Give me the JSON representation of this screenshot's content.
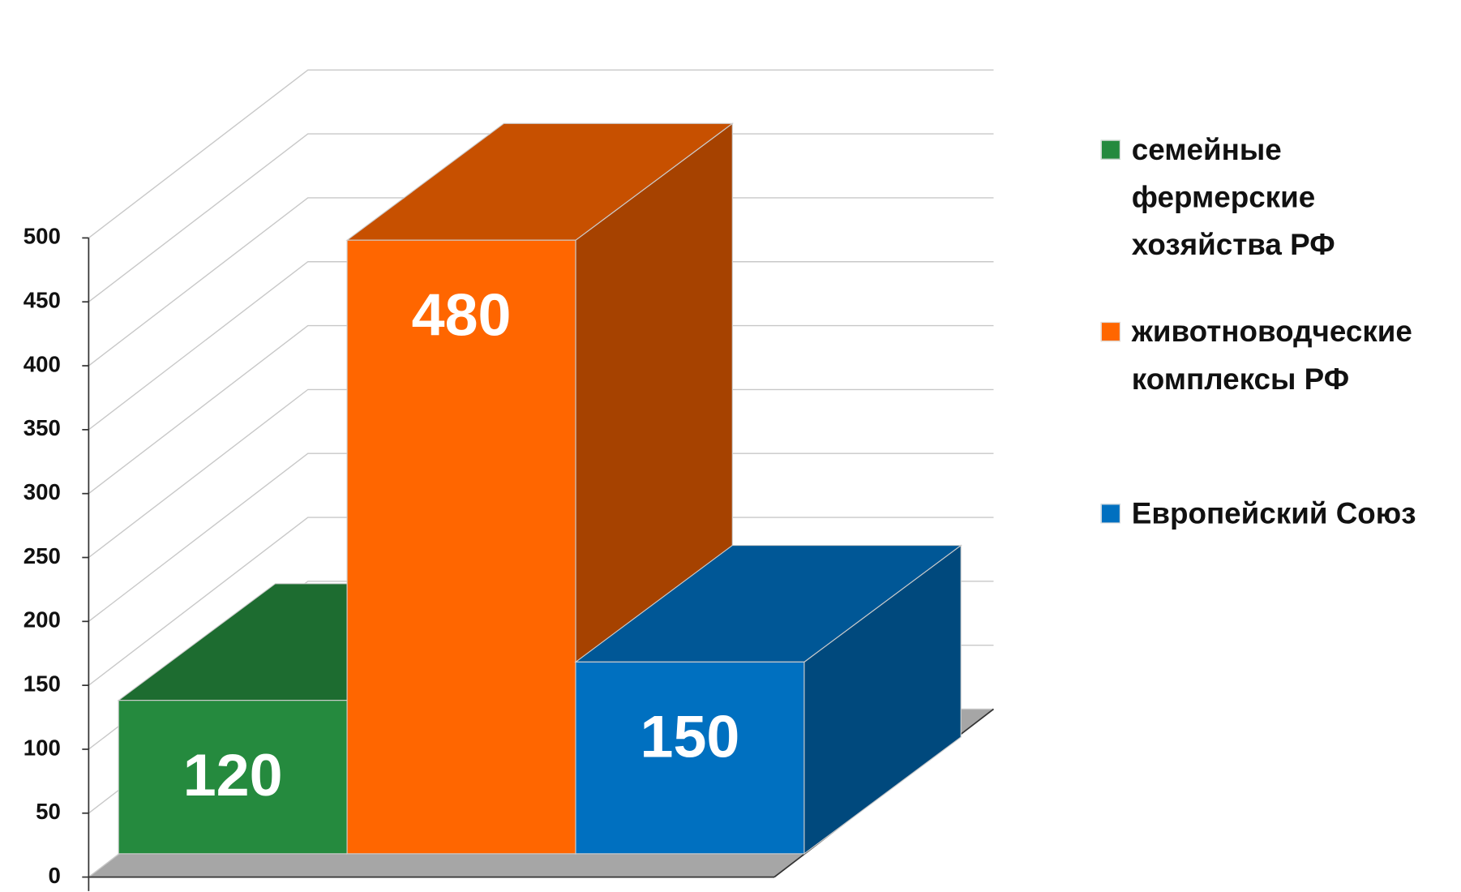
{
  "chart_data": {
    "type": "bar3d",
    "categories": [
      null
    ],
    "series": [
      {
        "name": "семейные фермерские хозяйства РФ",
        "color": "#258a3e",
        "values": [
          120
        ]
      },
      {
        "name": "животноводческие комплексы РФ",
        "color": "#ff6600",
        "values": [
          480
        ]
      },
      {
        "name": "Европейский Союз",
        "color": "#0070c0",
        "values": [
          150
        ]
      }
    ],
    "ylim": [
      0,
      500
    ],
    "yticks": [
      0,
      50,
      100,
      150,
      200,
      250,
      300,
      350,
      400,
      450,
      500
    ],
    "grid": true,
    "legend": "right"
  }
}
